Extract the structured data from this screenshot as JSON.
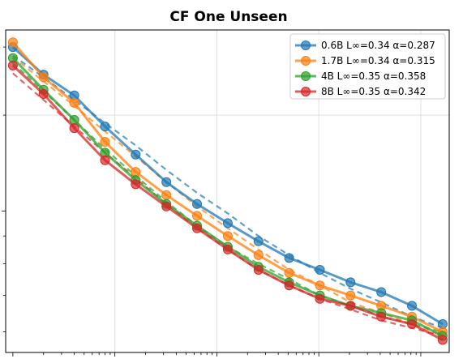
{
  "chart_data": {
    "type": "line",
    "title": "CF One Unseen",
    "xscale": "log",
    "yscale": "log",
    "grid": true,
    "legend_position": "top-right",
    "x": [
      1,
      2,
      4,
      8,
      16,
      32,
      64,
      128,
      256,
      512,
      1024,
      2048,
      4096,
      8192,
      16384
    ],
    "series": [
      {
        "name": "0.6B L∞=0.34 α=0.287",
        "color": "#1f77b4",
        "values": [
          2.0,
          1.78,
          1.63,
          1.43,
          1.27,
          1.13,
          1.03,
          0.95,
          0.88,
          0.82,
          0.78,
          0.74,
          0.71,
          0.67,
          0.62
        ],
        "fit": [
          1.93,
          1.76,
          1.6,
          1.45,
          1.32,
          1.19,
          1.08,
          0.99,
          0.9,
          0.83,
          0.77,
          0.72,
          0.68,
          0.64,
          0.61
        ]
      },
      {
        "name": "1.7B L∞=0.34 α=0.315",
        "color": "#ff7f0e",
        "values": [
          2.04,
          1.76,
          1.58,
          1.34,
          1.18,
          1.07,
          0.98,
          0.9,
          0.83,
          0.77,
          0.73,
          0.7,
          0.67,
          0.64,
          0.6
        ],
        "fit": [
          1.92,
          1.73,
          1.56,
          1.4,
          1.26,
          1.13,
          1.02,
          0.93,
          0.85,
          0.78,
          0.73,
          0.68,
          0.65,
          0.62,
          0.59
        ]
      },
      {
        "name": "4B L∞=0.35 α=0.358",
        "color": "#2ca02c",
        "values": [
          1.91,
          1.67,
          1.47,
          1.28,
          1.14,
          1.03,
          0.94,
          0.86,
          0.79,
          0.74,
          0.7,
          0.67,
          0.65,
          0.63,
          0.59
        ],
        "fit": [
          1.87,
          1.66,
          1.47,
          1.3,
          1.16,
          1.04,
          0.94,
          0.86,
          0.8,
          0.75,
          0.7,
          0.67,
          0.64,
          0.62,
          0.6
        ]
      },
      {
        "name": "8B L∞=0.35 α=0.342",
        "color": "#d62728",
        "values": [
          1.85,
          1.64,
          1.42,
          1.24,
          1.12,
          1.02,
          0.93,
          0.85,
          0.78,
          0.73,
          0.69,
          0.67,
          0.64,
          0.62,
          0.58
        ],
        "fit": [
          1.79,
          1.6,
          1.43,
          1.28,
          1.15,
          1.03,
          0.93,
          0.85,
          0.78,
          0.73,
          0.69,
          0.66,
          0.63,
          0.61,
          0.59
        ]
      }
    ],
    "xlim": [
      0.85,
      19000
    ],
    "ylim": [
      0.55,
      2.15
    ]
  }
}
